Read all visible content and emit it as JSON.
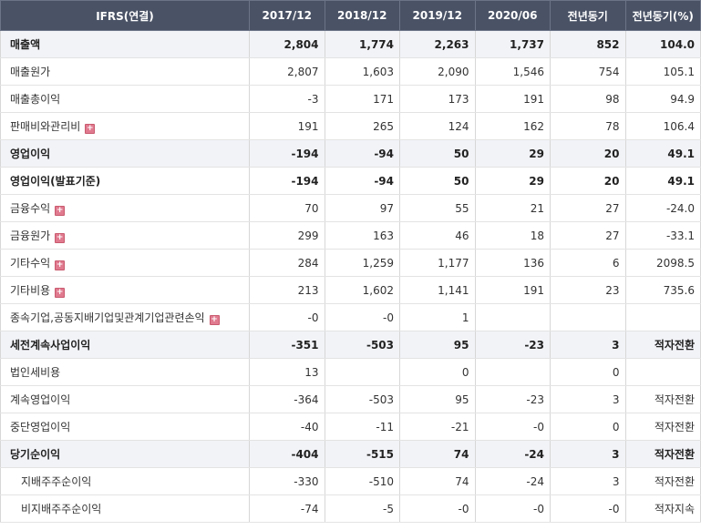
{
  "columns": [
    "IFRS(연결)",
    "2017/12",
    "2018/12",
    "2019/12",
    "2020/06",
    "전년동기",
    "전년동기(%)"
  ],
  "rows": [
    {
      "label": "매출액",
      "bold": true,
      "total": true,
      "expand": false,
      "sub": false,
      "values": [
        "2,804",
        "1,774",
        "2,263",
        "1,737",
        "852",
        "104.0"
      ]
    },
    {
      "label": "매출원가",
      "bold": false,
      "total": false,
      "expand": false,
      "sub": false,
      "values": [
        "2,807",
        "1,603",
        "2,090",
        "1,546",
        "754",
        "105.1"
      ]
    },
    {
      "label": "매출총이익",
      "bold": false,
      "total": false,
      "expand": false,
      "sub": false,
      "values": [
        "-3",
        "171",
        "173",
        "191",
        "98",
        "94.9"
      ]
    },
    {
      "label": "판매비와관리비",
      "bold": false,
      "total": false,
      "expand": true,
      "sub": false,
      "values": [
        "191",
        "265",
        "124",
        "162",
        "78",
        "106.4"
      ]
    },
    {
      "label": "영업이익",
      "bold": true,
      "total": true,
      "expand": false,
      "sub": false,
      "values": [
        "-194",
        "-94",
        "50",
        "29",
        "20",
        "49.1"
      ]
    },
    {
      "label": "영업이익(발표기준)",
      "bold": true,
      "total": false,
      "expand": false,
      "sub": false,
      "values": [
        "-194",
        "-94",
        "50",
        "29",
        "20",
        "49.1"
      ]
    },
    {
      "label": "금융수익",
      "bold": false,
      "total": false,
      "expand": true,
      "sub": false,
      "values": [
        "70",
        "97",
        "55",
        "21",
        "27",
        "-24.0"
      ]
    },
    {
      "label": "금융원가",
      "bold": false,
      "total": false,
      "expand": true,
      "sub": false,
      "values": [
        "299",
        "163",
        "46",
        "18",
        "27",
        "-33.1"
      ]
    },
    {
      "label": "기타수익",
      "bold": false,
      "total": false,
      "expand": true,
      "sub": false,
      "values": [
        "284",
        "1,259",
        "1,177",
        "136",
        "6",
        "2098.5"
      ]
    },
    {
      "label": "기타비용",
      "bold": false,
      "total": false,
      "expand": true,
      "sub": false,
      "values": [
        "213",
        "1,602",
        "1,141",
        "191",
        "23",
        "735.6"
      ]
    },
    {
      "label": "종속기업,공동지배기업및관계기업관련손익",
      "bold": false,
      "total": false,
      "expand": true,
      "sub": false,
      "values": [
        "-0",
        "-0",
        "1",
        "",
        "",
        ""
      ]
    },
    {
      "label": "세전계속사업이익",
      "bold": true,
      "total": true,
      "expand": false,
      "sub": false,
      "values": [
        "-351",
        "-503",
        "95",
        "-23",
        "3",
        "적자전환"
      ]
    },
    {
      "label": "법인세비용",
      "bold": false,
      "total": false,
      "expand": false,
      "sub": false,
      "values": [
        "13",
        "",
        "0",
        "",
        "0",
        ""
      ]
    },
    {
      "label": "계속영업이익",
      "bold": false,
      "total": false,
      "expand": false,
      "sub": false,
      "values": [
        "-364",
        "-503",
        "95",
        "-23",
        "3",
        "적자전환"
      ]
    },
    {
      "label": "중단영업이익",
      "bold": false,
      "total": false,
      "expand": false,
      "sub": false,
      "values": [
        "-40",
        "-11",
        "-21",
        "-0",
        "0",
        "적자전환"
      ]
    },
    {
      "label": "당기순이익",
      "bold": true,
      "total": true,
      "expand": false,
      "sub": false,
      "values": [
        "-404",
        "-515",
        "74",
        "-24",
        "3",
        "적자전환"
      ]
    },
    {
      "label": "지배주주순이익",
      "bold": false,
      "total": false,
      "expand": false,
      "sub": true,
      "values": [
        "-330",
        "-510",
        "74",
        "-24",
        "3",
        "적자전환"
      ]
    },
    {
      "label": "비지배주주순이익",
      "bold": false,
      "total": false,
      "expand": false,
      "sub": true,
      "values": [
        "-74",
        "-5",
        "-0",
        "-0",
        "-0",
        "적자지속"
      ]
    }
  ],
  "colors": {
    "header_bg": "#4a5366",
    "negative": "#d01f1f",
    "total_row_bg": "#f2f3f7",
    "expand_icon": "#e07a8f"
  },
  "icons": {
    "expand": "plus-icon"
  }
}
